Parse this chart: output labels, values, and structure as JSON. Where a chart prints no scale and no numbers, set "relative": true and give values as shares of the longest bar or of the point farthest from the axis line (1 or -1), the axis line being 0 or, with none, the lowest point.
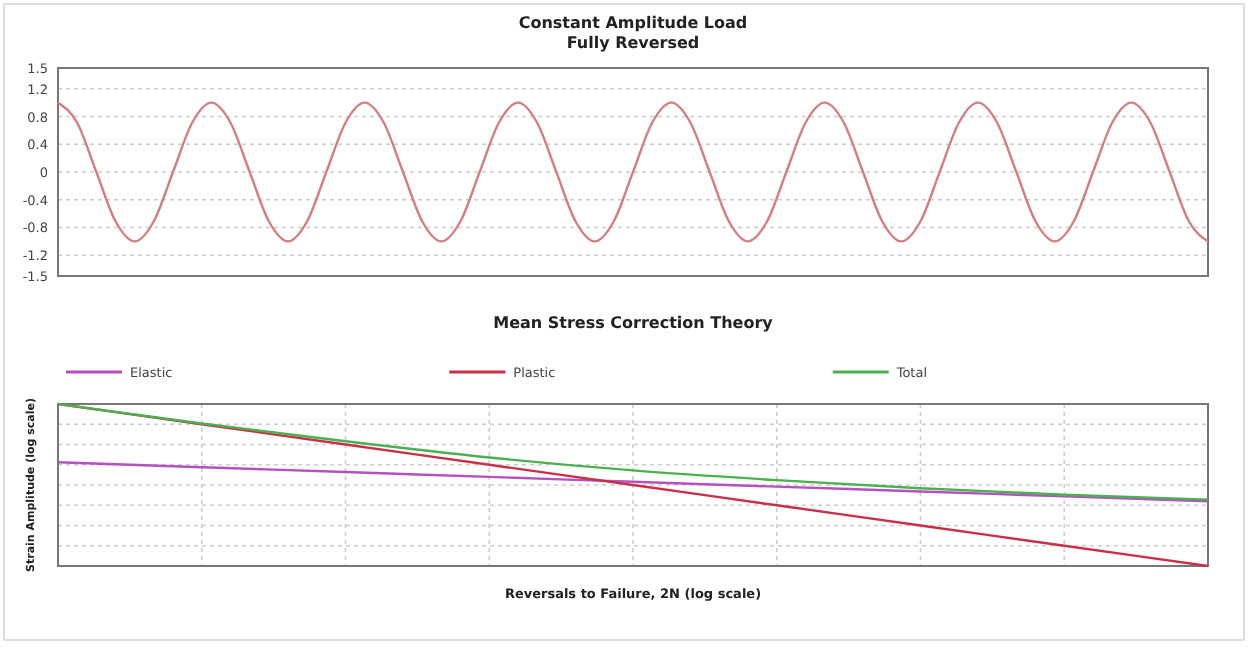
{
  "chart_data": [
    {
      "type": "line",
      "title": "Constant Amplitude Load",
      "subtitle": "Fully Reversed",
      "categories": [
        null,
        null,
        null,
        null,
        null,
        null,
        null,
        null,
        null,
        null,
        null,
        null,
        null,
        null,
        null,
        null,
        null,
        null,
        null,
        null,
        null,
        null,
        null,
        null,
        null,
        null,
        null,
        null,
        null,
        null,
        null,
        null,
        null,
        null,
        null,
        null,
        null,
        null,
        null,
        null,
        null,
        null,
        null,
        null,
        null,
        null,
        null,
        null,
        null,
        null,
        null,
        null,
        null,
        null,
        null,
        null,
        null,
        null,
        null,
        null,
        null
      ],
      "series": [
        {
          "color": "#d08080",
          "values": [
            1,
            0.71,
            0,
            -0.71,
            -1,
            -0.71,
            0,
            0.71,
            1,
            0.71,
            0,
            -0.71,
            -1,
            -0.71,
            0,
            0.71,
            1,
            0.71,
            0,
            -0.71,
            -1,
            -0.71,
            0,
            0.71,
            1,
            0.71,
            0,
            -0.71,
            -1,
            -0.71,
            0,
            0.71,
            1,
            0.71,
            0,
            -0.71,
            -1,
            -0.71,
            0,
            0.71,
            1,
            0.71,
            0,
            -0.71,
            -1,
            -0.71,
            0,
            0.71,
            1,
            0.71,
            0,
            -0.71,
            -1,
            -0.71,
            0,
            0.71,
            1,
            0.71,
            0,
            -0.71,
            -1
          ]
        }
      ],
      "ylim": [
        -1.5,
        1.5
      ],
      "yticks": [
        -1.5,
        -1.2,
        -0.8,
        -0.4,
        0,
        0.4,
        0.8,
        1.2,
        1.5
      ],
      "grid": "y",
      "legend": false,
      "tick_labels": "y"
    },
    {
      "type": "line",
      "title": "Mean Stress Correction Theory",
      "xlabel": "Reversals to Failure, 2N (log scale)",
      "ylabel": "Strain Amplitude (log scale)",
      "relative": true,
      "categories": [
        null,
        null,
        null,
        null,
        null,
        null,
        null,
        null,
        null
      ],
      "series": [
        {
          "name": "Elastic",
          "color": "#b450c0",
          "values": [
            0.64,
            0.61,
            0.58,
            0.55,
            0.52,
            0.49,
            0.46,
            0.43,
            0.4
          ]
        },
        {
          "name": "Plastic",
          "color": "#c8304a",
          "values": [
            1,
            0.875,
            0.75,
            0.625,
            0.5,
            0.375,
            0.25,
            0.125,
            0
          ]
        },
        {
          "name": "Total",
          "color": "#4caf50",
          "values": [
            1,
            0.88,
            0.77,
            0.67,
            0.59,
            0.53,
            0.48,
            0.44,
            0.41
          ]
        }
      ],
      "grid": true,
      "legend": "top",
      "tick_labels": false
    }
  ]
}
